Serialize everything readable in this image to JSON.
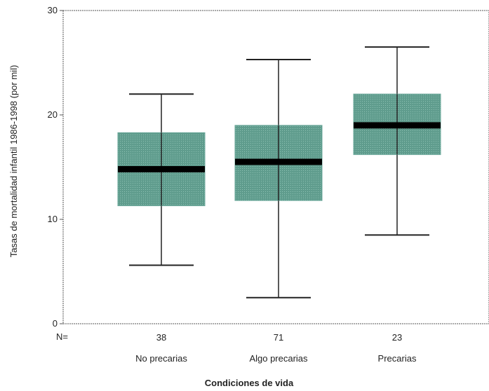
{
  "chart_data": {
    "type": "boxplot",
    "xlabel": "Condiciones de vida",
    "ylabel": "Tasas de mortalidad infantil 1986-1998 (por mil)",
    "ylim": [
      0,
      30
    ],
    "yticks": [
      0,
      10,
      20,
      30
    ],
    "n_label": "N=",
    "categories": [
      "No precarias",
      "Algo precarias",
      "Precarias"
    ],
    "n": [
      "38",
      "71",
      "23"
    ],
    "boxes": [
      {
        "category": "No precarias",
        "whisker_low": 5.6,
        "q1": 11.3,
        "median": 14.8,
        "q3": 18.3,
        "whisker_high": 22.0
      },
      {
        "category": "Algo precarias",
        "whisker_low": 2.5,
        "q1": 11.8,
        "median": 15.5,
        "q3": 19.0,
        "whisker_high": 25.3
      },
      {
        "category": "Precarias",
        "whisker_low": 8.5,
        "q1": 16.2,
        "median": 19.0,
        "q3": 22.0,
        "whisker_high": 26.5
      }
    ],
    "colors": {
      "box_fill": "#6aa799",
      "median": "#000000",
      "axis": "#555555"
    }
  }
}
